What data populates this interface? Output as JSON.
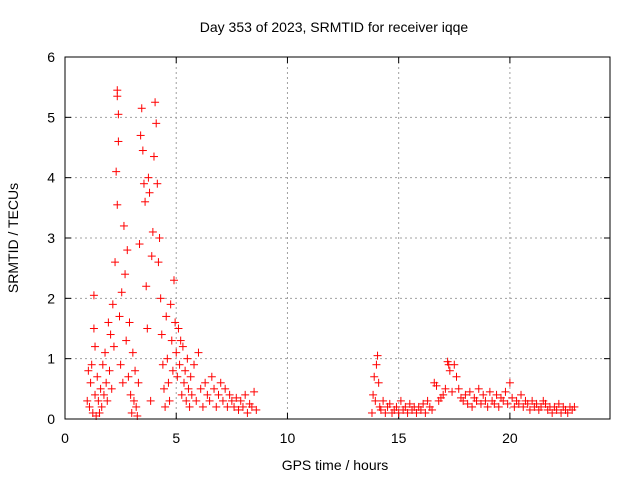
{
  "chart_data": {
    "type": "scatter",
    "title": "Day 353 of 2023, SRMTID for receiver iqqe",
    "xlabel": "GPS time / hours",
    "ylabel": "SRMTID / TECUs",
    "xlim": [
      0,
      24.5
    ],
    "ylim": [
      0,
      6
    ],
    "xticks": [
      0,
      5,
      10,
      15,
      20
    ],
    "yticks": [
      0,
      1,
      2,
      3,
      4,
      5,
      6
    ],
    "grid": true,
    "marker": "plus",
    "color": "#ff0000",
    "series": [
      {
        "name": "SRMTID",
        "x": [
          1.0,
          1.05,
          1.1,
          1.15,
          1.2,
          1.25,
          1.3,
          1.3,
          1.35,
          1.35,
          1.4,
          1.45,
          1.5,
          1.55,
          1.6,
          1.65,
          1.7,
          1.75,
          1.8,
          1.85,
          1.9,
          1.95,
          2.0,
          2.05,
          2.1,
          2.15,
          2.2,
          2.25,
          2.3,
          2.35,
          2.35,
          2.35,
          2.4,
          2.4,
          2.45,
          2.5,
          2.55,
          2.6,
          2.65,
          2.7,
          2.75,
          2.8,
          2.85,
          2.9,
          2.95,
          3.0,
          3.05,
          3.1,
          3.15,
          3.2,
          3.25,
          3.3,
          3.35,
          3.4,
          3.45,
          3.5,
          3.55,
          3.6,
          3.65,
          3.7,
          3.75,
          3.8,
          3.85,
          3.9,
          3.95,
          4.0,
          4.05,
          4.1,
          4.15,
          4.2,
          4.25,
          4.3,
          4.35,
          4.4,
          4.45,
          4.5,
          4.55,
          4.6,
          4.65,
          4.7,
          4.75,
          4.8,
          4.85,
          4.9,
          4.95,
          5.0,
          5.05,
          5.1,
          5.15,
          5.2,
          5.25,
          5.3,
          5.35,
          5.4,
          5.45,
          5.5,
          5.55,
          5.6,
          5.65,
          5.7,
          5.8,
          5.9,
          6.0,
          6.1,
          6.2,
          6.3,
          6.4,
          6.5,
          6.6,
          6.7,
          6.8,
          6.9,
          7.0,
          7.1,
          7.2,
          7.3,
          7.4,
          7.5,
          7.6,
          7.7,
          7.8,
          7.9,
          8.0,
          8.1,
          8.2,
          8.3,
          8.4,
          8.5,
          8.6,
          13.8,
          13.85,
          13.9,
          13.95,
          14.0,
          14.05,
          14.1,
          14.15,
          14.2,
          14.3,
          14.4,
          14.5,
          14.6,
          14.7,
          14.8,
          14.9,
          15.0,
          15.1,
          15.2,
          15.3,
          15.4,
          15.5,
          15.6,
          15.7,
          15.8,
          15.9,
          16.0,
          16.1,
          16.2,
          16.3,
          16.4,
          16.5,
          16.6,
          16.7,
          16.8,
          16.9,
          17.0,
          17.1,
          17.2,
          17.25,
          17.3,
          17.4,
          17.5,
          17.6,
          17.7,
          17.8,
          17.9,
          18.0,
          18.1,
          18.2,
          18.3,
          18.4,
          18.5,
          18.6,
          18.7,
          18.8,
          18.9,
          19.0,
          19.1,
          19.2,
          19.3,
          19.4,
          19.5,
          19.6,
          19.7,
          19.8,
          19.9,
          20.0,
          20.1,
          20.2,
          20.3,
          20.4,
          20.5,
          20.6,
          20.7,
          20.8,
          20.9,
          21.0,
          21.1,
          21.2,
          21.3,
          21.4,
          21.5,
          21.6,
          21.7,
          21.8,
          21.9,
          22.0,
          22.1,
          22.2,
          22.3,
          22.4,
          22.5,
          22.6,
          22.7,
          22.8,
          22.9
        ],
        "y": [
          0.3,
          0.8,
          0.2,
          0.6,
          0.9,
          0.1,
          1.5,
          2.05,
          0.4,
          1.2,
          0.05,
          0.7,
          0.3,
          0.1,
          0.5,
          0.2,
          0.9,
          0.4,
          1.1,
          0.6,
          0.3,
          1.6,
          0.8,
          1.4,
          0.5,
          1.9,
          1.2,
          2.6,
          4.1,
          5.45,
          5.35,
          3.55,
          4.6,
          5.05,
          1.7,
          0.9,
          2.1,
          0.6,
          3.2,
          2.4,
          1.3,
          2.8,
          0.7,
          1.6,
          0.4,
          0.1,
          1.1,
          0.3,
          0.8,
          0.2,
          0.05,
          0.6,
          2.9,
          4.7,
          5.15,
          4.45,
          3.9,
          3.6,
          2.2,
          1.5,
          4.0,
          3.75,
          0.3,
          2.7,
          3.1,
          4.35,
          5.25,
          4.9,
          3.9,
          2.6,
          3.0,
          2.0,
          1.4,
          0.9,
          0.5,
          0.2,
          1.7,
          1.0,
          0.6,
          0.3,
          1.9,
          1.3,
          0.8,
          2.3,
          1.6,
          1.1,
          0.7,
          1.5,
          0.9,
          1.3,
          0.4,
          1.2,
          0.6,
          0.8,
          0.3,
          1.0,
          0.5,
          0.2,
          0.7,
          0.4,
          0.9,
          0.3,
          1.1,
          0.5,
          0.2,
          0.6,
          0.4,
          0.3,
          0.7,
          0.5,
          0.2,
          0.4,
          0.6,
          0.3,
          0.5,
          0.2,
          0.4,
          0.3,
          0.2,
          0.35,
          0.15,
          0.3,
          0.2,
          0.4,
          0.1,
          0.25,
          0.2,
          0.45,
          0.15,
          0.1,
          0.4,
          0.7,
          0.3,
          0.9,
          1.05,
          0.6,
          0.2,
          0.15,
          0.3,
          0.1,
          0.2,
          0.25,
          0.1,
          0.15,
          0.2,
          0.1,
          0.3,
          0.15,
          0.2,
          0.1,
          0.25,
          0.15,
          0.2,
          0.1,
          0.2,
          0.15,
          0.25,
          0.1,
          0.3,
          0.2,
          0.15,
          0.6,
          0.55,
          0.3,
          0.35,
          0.4,
          0.5,
          0.95,
          0.9,
          0.8,
          0.45,
          0.9,
          0.7,
          0.5,
          0.35,
          0.3,
          0.4,
          0.25,
          0.45,
          0.2,
          0.35,
          0.3,
          0.5,
          0.25,
          0.4,
          0.3,
          0.2,
          0.45,
          0.3,
          0.25,
          0.4,
          0.2,
          0.35,
          0.3,
          0.45,
          0.25,
          0.6,
          0.35,
          0.2,
          0.3,
          0.25,
          0.4,
          0.2,
          0.3,
          0.25,
          0.15,
          0.3,
          0.2,
          0.25,
          0.15,
          0.2,
          0.3,
          0.25,
          0.15,
          0.2,
          0.1,
          0.2,
          0.15,
          0.25,
          0.1,
          0.2,
          0.15,
          0.1,
          0.2,
          0.15,
          0.2
        ]
      }
    ]
  }
}
